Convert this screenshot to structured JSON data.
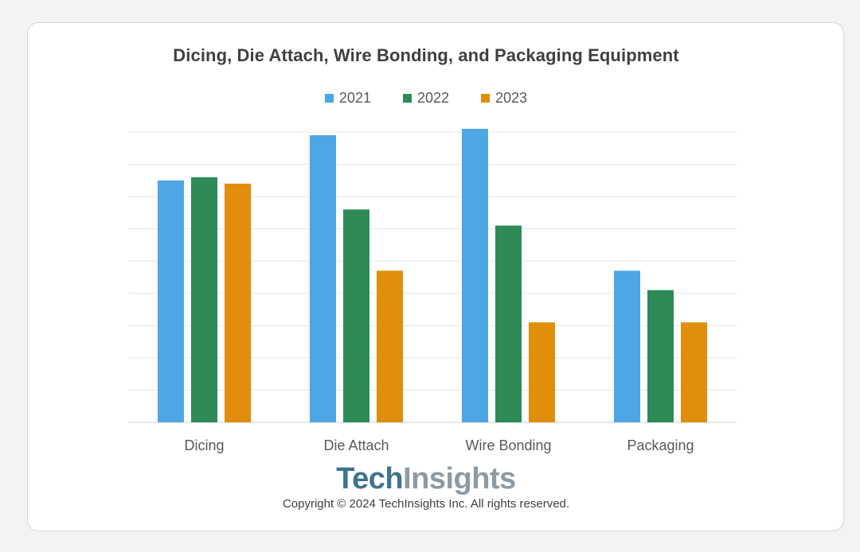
{
  "chart_data": {
    "type": "bar",
    "title": "Dicing, Die Attach, Wire Bonding, and Packaging Equipment",
    "categories": [
      "Dicing",
      "Die Attach",
      "Wire Bonding",
      "Packaging"
    ],
    "series": [
      {
        "name": "2021",
        "color": "#4ea6e4",
        "values": [
          7.5,
          8.9,
          9.1,
          4.7
        ]
      },
      {
        "name": "2022",
        "color": "#2e8b57",
        "values": [
          7.6,
          6.6,
          6.1,
          4.1
        ]
      },
      {
        "name": "2023",
        "color": "#e08e0b",
        "values": [
          7.4,
          4.7,
          3.1,
          3.1
        ]
      }
    ],
    "ylim": [
      0,
      9
    ],
    "y_gridlines": 9,
    "y_tick_labels_visible": false,
    "grid": true,
    "legend_position": "top-center",
    "xlabel": "",
    "ylabel": ""
  },
  "brand": {
    "part1": "Tech",
    "part2": "Insights"
  },
  "copyright": "Copyright © 2024 TechInsights Inc.  All rights reserved."
}
